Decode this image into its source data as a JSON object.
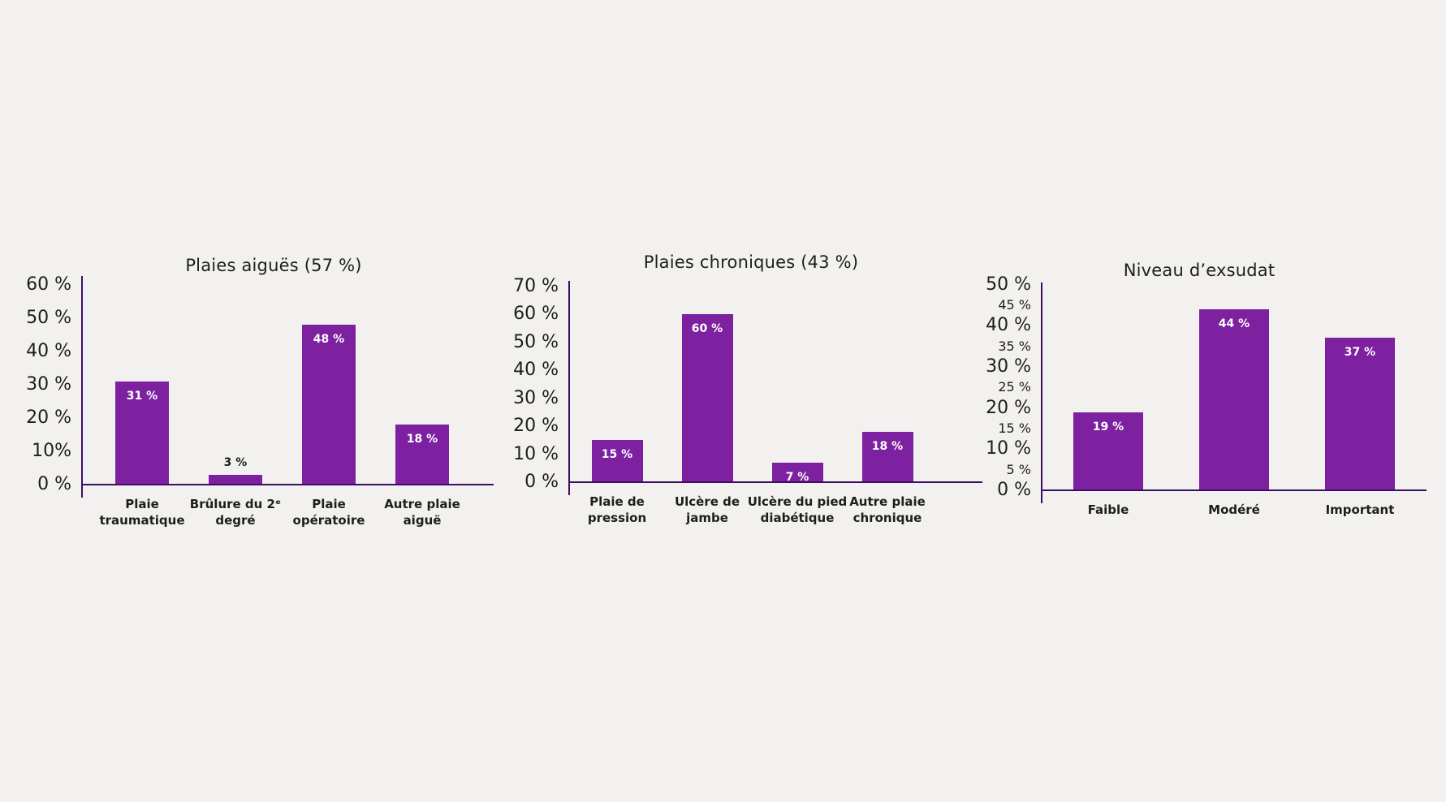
{
  "page": {
    "background_color": "#f2f1f0",
    "text_color": "#1e1e1c"
  },
  "colors": {
    "bar": "#7d21a1",
    "axis": "#3c0e63",
    "value_label_inside": "#ffffff",
    "value_label_outside": "#1e1e1c"
  },
  "chart_data": [
    {
      "type": "bar",
      "title": "Plaies aiguës (57 %)",
      "categories": [
        "Plaie\ntraumatique",
        "Brûlure du 2ᵉ\ndegré",
        "Plaie\nopératoire",
        "Autre plaie\naiguë"
      ],
      "values": [
        31,
        3,
        48,
        18
      ],
      "value_labels": [
        "31 %",
        "3 %",
        "48 %",
        "18 %"
      ],
      "value_label_placement": [
        "inside",
        "above",
        "inside",
        "inside"
      ],
      "yticks": [
        {
          "label": "0 %",
          "value": 0,
          "size": "lg"
        },
        {
          "label": "10%",
          "value": 10,
          "size": "lg"
        },
        {
          "label": "20 %",
          "value": 20,
          "size": "lg"
        },
        {
          "label": "30 %",
          "value": 30,
          "size": "lg"
        },
        {
          "label": "40 %",
          "value": 40,
          "size": "lg"
        },
        {
          "label": "50 %",
          "value": 50,
          "size": "lg"
        },
        {
          "label": "60 %",
          "value": 60,
          "size": "lg"
        }
      ],
      "ylim": [
        0,
        63
      ],
      "xlabel": "",
      "ylabel": "",
      "grid": false,
      "legend": "none"
    },
    {
      "type": "bar",
      "title": "Plaies chroniques (43 %)",
      "categories": [
        "Plaie de\npression",
        "Ulcère de\njambe",
        "Ulcère du pied\ndiabétique",
        "Autre plaie\nchronique"
      ],
      "values": [
        15,
        60,
        7,
        18
      ],
      "value_labels": [
        "15 %",
        "60 %",
        "7 %",
        "18 %"
      ],
      "value_label_placement": [
        "inside",
        "inside",
        "inside",
        "inside"
      ],
      "yticks": [
        {
          "label": "0 %",
          "value": 0,
          "size": "lg"
        },
        {
          "label": "10 %",
          "value": 10,
          "size": "lg"
        },
        {
          "label": "20 %",
          "value": 20,
          "size": "lg"
        },
        {
          "label": "30 %",
          "value": 30,
          "size": "lg"
        },
        {
          "label": "40 %",
          "value": 40,
          "size": "lg"
        },
        {
          "label": "50 %",
          "value": 50,
          "size": "lg"
        },
        {
          "label": "60 %",
          "value": 60,
          "size": "lg"
        },
        {
          "label": "70 %",
          "value": 70,
          "size": "lg"
        }
      ],
      "ylim": [
        0,
        72
      ],
      "xlabel": "",
      "ylabel": "",
      "grid": false,
      "legend": "none"
    },
    {
      "type": "bar",
      "title": "Niveau d’exsudat",
      "categories": [
        "Faible",
        "Modéré",
        "Important"
      ],
      "values": [
        19,
        44,
        37
      ],
      "value_labels": [
        "19 %",
        "44 %",
        "37 %"
      ],
      "value_label_placement": [
        "inside",
        "inside",
        "inside"
      ],
      "yticks": [
        {
          "label": "0 %",
          "value": 0,
          "size": "lg"
        },
        {
          "label": "5 %",
          "value": 5,
          "size": "sm"
        },
        {
          "label": "10 %",
          "value": 10,
          "size": "lg"
        },
        {
          "label": "15 %",
          "value": 15,
          "size": "sm"
        },
        {
          "label": "20 %",
          "value": 20,
          "size": "lg"
        },
        {
          "label": "25 %",
          "value": 25,
          "size": "sm"
        },
        {
          "label": "30 %",
          "value": 30,
          "size": "lg"
        },
        {
          "label": "35 %",
          "value": 35,
          "size": "sm"
        },
        {
          "label": "40 %",
          "value": 40,
          "size": "lg"
        },
        {
          "label": "45 %",
          "value": 45,
          "size": "sm"
        },
        {
          "label": "50 %",
          "value": 50,
          "size": "lg"
        }
      ],
      "ylim": [
        0,
        50.5
      ],
      "xlabel": "",
      "ylabel": "",
      "grid": false,
      "legend": "none"
    }
  ]
}
